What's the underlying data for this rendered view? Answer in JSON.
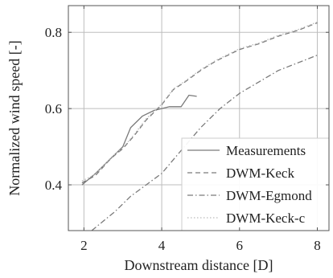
{
  "chart_data": {
    "type": "line",
    "xlabel": "Downstream distance [D]",
    "ylabel": "Normalized wind speed [-]",
    "xlim": [
      1.6,
      8.3
    ],
    "ylim": [
      0.28,
      0.87
    ],
    "xticks": [
      2,
      4,
      6,
      8
    ],
    "yticks": [
      0.4,
      0.6,
      0.8
    ],
    "xtick_labels": [
      "2",
      "4",
      "6",
      "8"
    ],
    "ytick_labels": [
      "0.4",
      "0.6",
      "0.8"
    ],
    "grid": true,
    "legend_position": "bottom-right",
    "series": [
      {
        "name": "Measurements",
        "color": "#7a7a7a",
        "dash": "solid",
        "x": [
          1.95,
          2.3,
          2.7,
          3.0,
          3.2,
          3.5,
          3.8,
          4.0,
          4.2,
          4.5,
          4.7,
          4.9
        ],
        "y": [
          0.4,
          0.43,
          0.47,
          0.5,
          0.55,
          0.58,
          0.595,
          0.6,
          0.605,
          0.605,
          0.635,
          0.632
        ]
      },
      {
        "name": "DWM-Keck",
        "color": "#7a7a7a",
        "dash": "dashed",
        "x": [
          1.95,
          2.3,
          2.7,
          3.0,
          3.3,
          3.6,
          4.0,
          4.3,
          4.6,
          5.0,
          5.4,
          6.0,
          6.5,
          7.0,
          7.5,
          8.0
        ],
        "y": [
          0.405,
          0.425,
          0.47,
          0.495,
          0.53,
          0.57,
          0.61,
          0.65,
          0.67,
          0.7,
          0.725,
          0.755,
          0.77,
          0.79,
          0.805,
          0.825
        ]
      },
      {
        "name": "DWM-Egmond",
        "color": "#7a7a7a",
        "dash": "dashdot",
        "x": [
          2.2,
          2.8,
          3.2,
          3.6,
          4.0,
          4.5,
          5.0,
          5.5,
          6.0,
          6.5,
          7.0,
          7.5,
          8.0
        ],
        "y": [
          0.28,
          0.33,
          0.37,
          0.4,
          0.43,
          0.49,
          0.55,
          0.6,
          0.64,
          0.67,
          0.7,
          0.72,
          0.74
        ]
      },
      {
        "name": "DWM-Keck-c",
        "color": "#bbbbbb",
        "dash": "dotted",
        "x": [
          1.95,
          2.3,
          2.7,
          3.0,
          3.3,
          3.6,
          4.0,
          4.3,
          4.6,
          5.0,
          5.4,
          6.0,
          6.5,
          7.0,
          7.5,
          8.0
        ],
        "y": [
          0.41,
          0.428,
          0.472,
          0.497,
          0.533,
          0.573,
          0.612,
          0.652,
          0.672,
          0.702,
          0.727,
          0.757,
          0.772,
          0.792,
          0.807,
          0.827
        ]
      }
    ]
  }
}
